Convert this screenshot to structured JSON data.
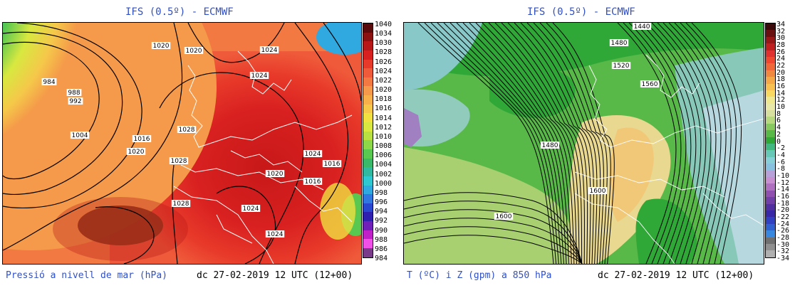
{
  "left_panel": {
    "title": "IFS (0.5º) - ECMWF",
    "description": "Pressió a nivell de mar (hPa)",
    "datetime": "dc 27-02-2019 12 UTC (12+00)",
    "colorbar": {
      "labels": [
        "1040",
        "1034",
        "1030",
        "1028",
        "1026",
        "1024",
        "1022",
        "1020",
        "1018",
        "1016",
        "1014",
        "1012",
        "1010",
        "1008",
        "1006",
        "1004",
        "1002",
        "1000",
        "998",
        "996",
        "994",
        "992",
        "990",
        "988",
        "986",
        "984"
      ],
      "colors": [
        "#5a0a0a",
        "#8b1010",
        "#b81818",
        "#d82020",
        "#e83a2a",
        "#ef5a3a",
        "#f27a42",
        "#f59a4a",
        "#f7b04a",
        "#f5c84a",
        "#f0e040",
        "#d8e840",
        "#b8e040",
        "#8cd848",
        "#58c850",
        "#38b868",
        "#30b8a0",
        "#30c8d0",
        "#30a8e0",
        "#3078e0",
        "#2848d0",
        "#3020b0",
        "#7020b8",
        "#c020c8",
        "#f050e8",
        "#7a3a8a"
      ]
    },
    "contour_labels": [
      "984",
      "988",
      "992",
      "1004",
      "1016",
      "1020",
      "1020",
      "1020",
      "1024",
      "1024",
      "1028",
      "1028",
      "1028",
      "1024",
      "1024",
      "1020",
      "1016",
      "1016",
      "1024"
    ],
    "colors": {
      "title": "#3050c8",
      "coast": "#ffffff"
    }
  },
  "right_panel": {
    "title": "IFS (0.5º) - ECMWF",
    "description": "T (ºC) i Z (gpm) a 850 hPa",
    "datetime": "dc 27-02-2019 12 UTC (12+00)",
    "colorbar": {
      "labels": [
        "34",
        "32",
        "30",
        "28",
        "26",
        "24",
        "22",
        "20",
        "18",
        "16",
        "14",
        "12",
        "10",
        "8",
        "6",
        "4",
        "2",
        "0",
        "-2",
        "-4",
        "-6",
        "-8",
        "-10",
        "-12",
        "-14",
        "-16",
        "-18",
        "-20",
        "-22",
        "-24",
        "-26",
        "-28",
        "-30",
        "-32",
        "-34"
      ],
      "colors": [
        "#3a0a0a",
        "#6a1010",
        "#981818",
        "#c02020",
        "#e03030",
        "#f04830",
        "#f06838",
        "#f08840",
        "#f4a848",
        "#f8c050",
        "#f8d860",
        "#f0e890",
        "#e8e8a8",
        "#d8e0a0",
        "#b8d880",
        "#88c860",
        "#58b848",
        "#30a838",
        "#40b880",
        "#68c8b8",
        "#88d0d8",
        "#88c0e0",
        "#b8a0d8",
        "#c890d0",
        "#b070c0",
        "#9050b0",
        "#7040a8",
        "#5030a0",
        "#3828a8",
        "#3040c0",
        "#3060d0",
        "#3888e0",
        "#707070",
        "#909090",
        "#b0b0b0"
      ]
    },
    "contour_labels": [
      "1440",
      "1480",
      "1520",
      "1560",
      "1480",
      "1600",
      "1600"
    ],
    "colors": {
      "title": "#3050c8",
      "coast": "#ffffff"
    }
  }
}
